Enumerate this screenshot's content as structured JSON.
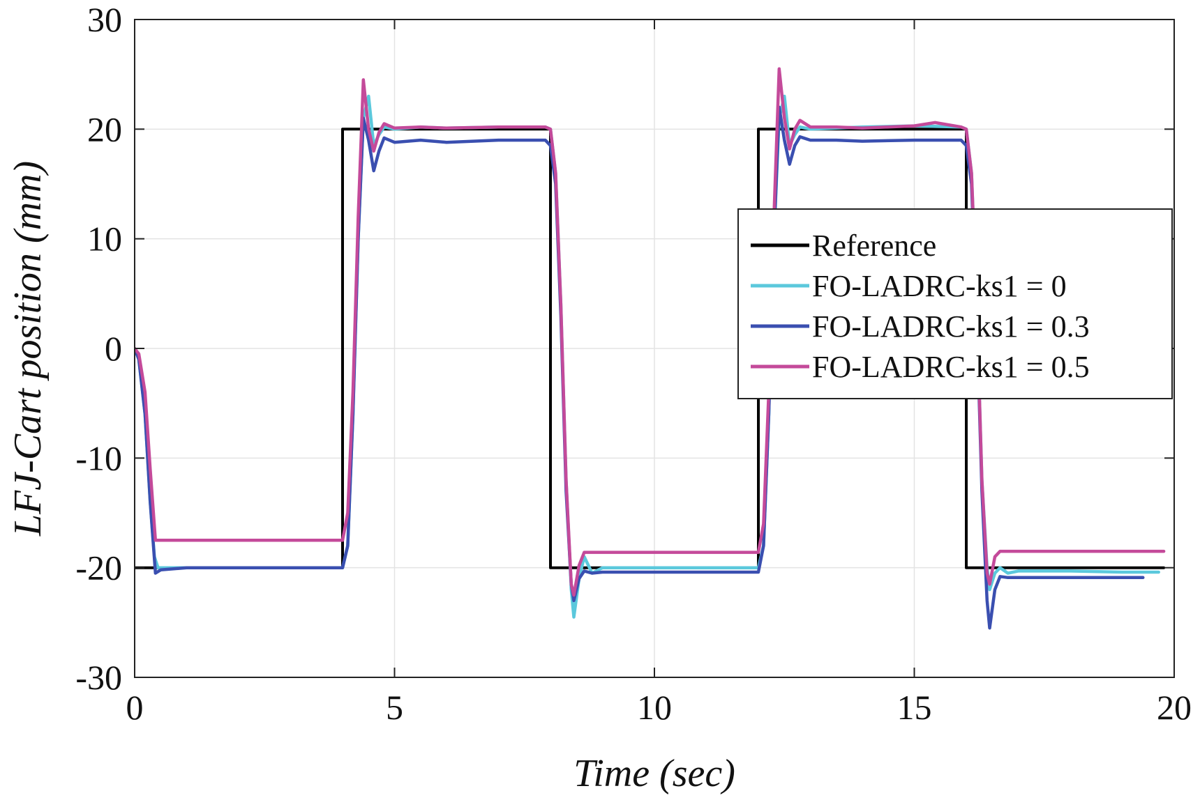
{
  "chart_data": {
    "type": "line",
    "title": "",
    "xlabel": "Time (sec)",
    "ylabel": "LFJ-Cart position (mm)",
    "xlim": [
      0,
      20
    ],
    "ylim": [
      -30,
      30
    ],
    "xticks": [
      "0",
      "5",
      "10",
      "15",
      "20"
    ],
    "yticks": [
      "-30",
      "-20",
      "-10",
      "0",
      "10",
      "20",
      "30"
    ],
    "grid": true,
    "legend_position": "right-middle",
    "series": [
      {
        "name": "Reference",
        "color": "#000000",
        "x": [
          0,
          4.0,
          4.0,
          8.0,
          8.0,
          12.0,
          12.0,
          16.0,
          16.0,
          19.8
        ],
        "y": [
          -20,
          -20,
          20,
          20,
          -20,
          -20,
          20,
          20,
          -20,
          -20
        ]
      },
      {
        "name": "FO-LADRC-ks1 = 0",
        "color": "#5bc8dc",
        "x": [
          0,
          0.08,
          0.2,
          0.3,
          0.38,
          0.45,
          1.0,
          2.0,
          3.0,
          4.0,
          4.1,
          4.2,
          4.3,
          4.4,
          4.5,
          4.6,
          4.7,
          4.8,
          5.0,
          5.5,
          6.0,
          7.0,
          7.9,
          8.0,
          8.1,
          8.2,
          8.3,
          8.4,
          8.45,
          8.55,
          8.65,
          8.8,
          9.0,
          10.0,
          11.0,
          12.0,
          12.1,
          12.2,
          12.3,
          12.4,
          12.5,
          12.6,
          12.7,
          12.8,
          13.0,
          13.5,
          14.0,
          15.0,
          15.9,
          16.0,
          16.1,
          16.2,
          16.3,
          16.4,
          16.45,
          16.55,
          16.65,
          16.8,
          17.0,
          18.0,
          19.0,
          19.7
        ],
        "y": [
          0,
          -1,
          -6,
          -14,
          -19,
          -20,
          -20,
          -20,
          -20,
          -20,
          -18,
          -6,
          10,
          21,
          23,
          18.5,
          19.5,
          20.2,
          20,
          20.2,
          20.1,
          20.2,
          20.2,
          20,
          16,
          4,
          -12,
          -22,
          -24.5,
          -21,
          -19,
          -20.5,
          -20,
          -20,
          -20,
          -20,
          -18,
          -6,
          10,
          21,
          23,
          18.5,
          19.5,
          20.2,
          20,
          20.1,
          20.2,
          20.3,
          20.2,
          20,
          16,
          4,
          -12,
          -20,
          -22,
          -20.5,
          -20,
          -20.5,
          -20.3,
          -20.3,
          -20.4,
          -20.4
        ]
      },
      {
        "name": "FO-LADRC-ks1 = 0.3",
        "color": "#3a4fb0",
        "x": [
          0,
          0.08,
          0.2,
          0.3,
          0.4,
          0.5,
          1.0,
          2.0,
          3.0,
          4.0,
          4.1,
          4.2,
          4.3,
          4.4,
          4.5,
          4.6,
          4.7,
          4.8,
          5.0,
          5.5,
          6.0,
          7.0,
          7.9,
          8.0,
          8.1,
          8.2,
          8.3,
          8.4,
          8.45,
          8.55,
          8.65,
          8.8,
          9.0,
          10.0,
          11.0,
          12.0,
          12.1,
          12.2,
          12.3,
          12.4,
          12.5,
          12.6,
          12.7,
          12.8,
          13.0,
          13.5,
          14.0,
          15.0,
          15.9,
          16.0,
          16.1,
          16.2,
          16.3,
          16.4,
          16.45,
          16.55,
          16.65,
          16.8,
          17.0,
          18.0,
          19.0,
          19.4
        ],
        "y": [
          0,
          -1,
          -6,
          -14,
          -20.5,
          -20.2,
          -20,
          -20,
          -20,
          -20,
          -18,
          -6,
          10,
          21,
          19,
          16.2,
          18,
          19.2,
          18.8,
          19,
          18.8,
          19,
          19,
          18.5,
          15,
          3,
          -13,
          -21.5,
          -23,
          -21,
          -20.3,
          -20.5,
          -20.4,
          -20.4,
          -20.4,
          -20.4,
          -18,
          -6,
          10,
          22,
          19,
          16.8,
          18.5,
          19.3,
          19,
          19,
          18.9,
          19,
          19,
          18.5,
          15,
          3,
          -13,
          -23,
          -25.5,
          -22,
          -20.8,
          -20.9,
          -20.9,
          -20.9,
          -20.9,
          -20.9
        ]
      },
      {
        "name": "FO-LADRC-ks1 = 0.5",
        "color": "#c44a9a",
        "x": [
          0,
          0.08,
          0.2,
          0.3,
          0.4,
          0.5,
          1.0,
          2.0,
          3.0,
          4.0,
          4.1,
          4.2,
          4.3,
          4.4,
          4.5,
          4.6,
          4.7,
          4.8,
          5.0,
          5.5,
          6.0,
          7.0,
          7.9,
          8.0,
          8.1,
          8.2,
          8.3,
          8.4,
          8.45,
          8.55,
          8.65,
          8.8,
          9.0,
          10.0,
          11.0,
          12.0,
          12.1,
          12.2,
          12.3,
          12.4,
          12.5,
          12.6,
          12.7,
          12.8,
          13.0,
          13.5,
          14.0,
          15.0,
          15.4,
          15.9,
          16.0,
          16.1,
          16.2,
          16.3,
          16.4,
          16.45,
          16.55,
          16.65,
          16.8,
          17.0,
          18.0,
          19.0,
          19.8
        ],
        "y": [
          0,
          -0.5,
          -4,
          -11,
          -17.5,
          -17.5,
          -17.5,
          -17.5,
          -17.5,
          -17.5,
          -15,
          -4,
          12,
          24.5,
          20,
          18,
          19.7,
          20.5,
          20.1,
          20.2,
          20.1,
          20.2,
          20.2,
          20,
          16,
          4,
          -12,
          -21.5,
          -22.5,
          -19.8,
          -18.6,
          -18.6,
          -18.6,
          -18.6,
          -18.6,
          -18.6,
          -16,
          -4,
          12,
          25.5,
          21,
          18.2,
          20,
          20.8,
          20.2,
          20.2,
          20.1,
          20.3,
          20.6,
          20.2,
          20,
          16,
          4,
          -12,
          -20.5,
          -21.5,
          -19,
          -18.5,
          -18.5,
          -18.5,
          -18.5,
          -18.5,
          -18.5
        ]
      }
    ]
  }
}
